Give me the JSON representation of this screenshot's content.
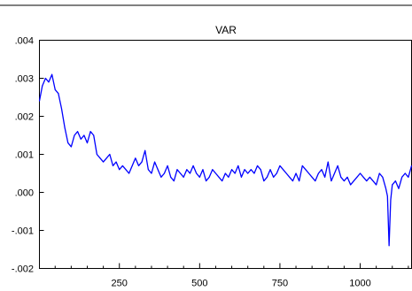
{
  "chart_data": {
    "type": "line",
    "title": "VAR",
    "xlabel": "",
    "ylabel": "",
    "x_range": [
      1,
      1160
    ],
    "ylim": [
      -0.002,
      0.004
    ],
    "x_ticks": [
      {
        "value": 250,
        "label": "250"
      },
      {
        "value": 500,
        "label": "500"
      },
      {
        "value": 750,
        "label": "750"
      },
      {
        "value": 1000,
        "label": "1000"
      }
    ],
    "y_ticks": [
      {
        "value": 0.004,
        "label": ".004"
      },
      {
        "value": 0.003,
        "label": ".003"
      },
      {
        "value": 0.002,
        "label": ".002"
      },
      {
        "value": 0.001,
        "label": ".001"
      },
      {
        "value": 0.0,
        "label": ".000"
      },
      {
        "value": -0.001,
        "label": "-.001"
      },
      {
        "value": -0.002,
        "label": "-.002"
      }
    ],
    "grid": false,
    "legend": "none",
    "series": [
      {
        "color": "#0000ff",
        "x": [
          1,
          10,
          20,
          30,
          40,
          50,
          60,
          70,
          80,
          90,
          100,
          110,
          120,
          130,
          140,
          150,
          160,
          170,
          180,
          190,
          200,
          210,
          220,
          230,
          240,
          250,
          260,
          270,
          280,
          290,
          300,
          310,
          320,
          330,
          340,
          350,
          360,
          370,
          380,
          390,
          400,
          410,
          420,
          430,
          440,
          450,
          460,
          470,
          480,
          490,
          500,
          510,
          520,
          530,
          540,
          550,
          560,
          570,
          580,
          590,
          600,
          610,
          620,
          630,
          640,
          650,
          660,
          670,
          680,
          690,
          700,
          710,
          720,
          730,
          740,
          750,
          760,
          770,
          780,
          790,
          800,
          810,
          820,
          830,
          840,
          850,
          860,
          870,
          880,
          890,
          900,
          910,
          920,
          930,
          940,
          950,
          960,
          970,
          980,
          990,
          1000,
          1010,
          1020,
          1030,
          1040,
          1050,
          1060,
          1070,
          1080,
          1085,
          1090,
          1095,
          1100,
          1110,
          1120,
          1130,
          1140,
          1150,
          1160
        ],
        "y": [
          0.0024,
          0.0028,
          0.003,
          0.0029,
          0.0031,
          0.0027,
          0.0026,
          0.0022,
          0.0017,
          0.0013,
          0.0012,
          0.0015,
          0.0016,
          0.0014,
          0.0015,
          0.0013,
          0.0016,
          0.0015,
          0.001,
          0.0009,
          0.0008,
          0.0009,
          0.001,
          0.0007,
          0.0008,
          0.0006,
          0.0007,
          0.0006,
          0.0005,
          0.0007,
          0.0009,
          0.0007,
          0.0008,
          0.0011,
          0.0006,
          0.0005,
          0.0008,
          0.0006,
          0.0004,
          0.0005,
          0.0007,
          0.0004,
          0.0003,
          0.0006,
          0.0005,
          0.0004,
          0.0006,
          0.0005,
          0.0007,
          0.0005,
          0.0004,
          0.0006,
          0.0003,
          0.0004,
          0.0006,
          0.0005,
          0.0004,
          0.0003,
          0.0005,
          0.0004,
          0.0006,
          0.0005,
          0.0007,
          0.0004,
          0.0006,
          0.0005,
          0.0006,
          0.0005,
          0.0007,
          0.0006,
          0.0003,
          0.0004,
          0.0006,
          0.0004,
          0.0005,
          0.0007,
          0.0006,
          0.0005,
          0.0004,
          0.0003,
          0.0005,
          0.0003,
          0.0007,
          0.0006,
          0.0005,
          0.0004,
          0.0003,
          0.0005,
          0.0006,
          0.0004,
          0.0008,
          0.0003,
          0.0005,
          0.0007,
          0.0004,
          0.0003,
          0.0004,
          0.0002,
          0.0003,
          0.0004,
          0.0005,
          0.0004,
          0.0003,
          0.0004,
          0.0003,
          0.0002,
          0.0005,
          0.0004,
          0.0001,
          -0.0001,
          -0.0014,
          -0.0002,
          0.0002,
          0.0003,
          0.0001,
          0.0004,
          0.0005,
          0.0004,
          0.0007
        ]
      }
    ]
  }
}
